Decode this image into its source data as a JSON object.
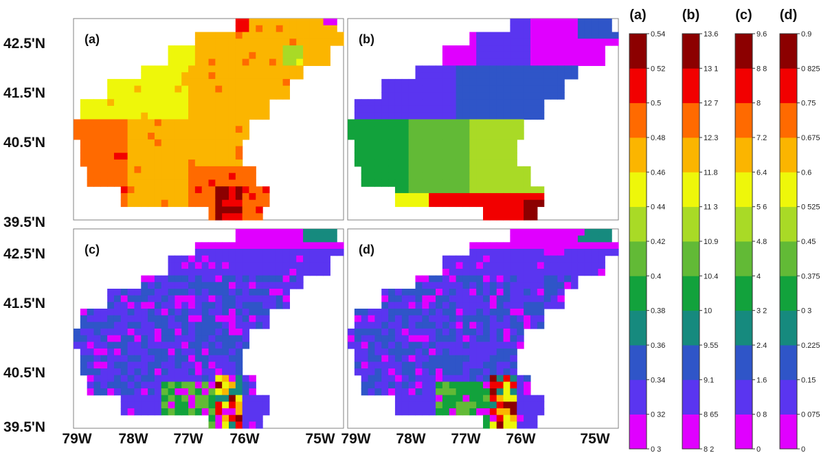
{
  "axes": {
    "lat_labels": [
      "42.5'N",
      "41.5'N",
      "40.5'N",
      "39.5'N"
    ],
    "lon_labels": [
      "79W",
      "78W",
      "77W",
      "76W",
      "75W"
    ]
  },
  "panels": [
    {
      "label": "(a)"
    },
    {
      "label": "(b)"
    },
    {
      "label": "(c)"
    },
    {
      "label": "(d)"
    }
  ],
  "palette": [
    "#e000ff",
    "#5a35f0",
    "#2f55c8",
    "#168a7e",
    "#12a23c",
    "#62ba36",
    "#a9da26",
    "#eef70a",
    "#fbb500",
    "#ff6a00",
    "#f20000",
    "#8c0000"
  ],
  "colorbars": [
    {
      "label": "(a)",
      "ticks": [
        "0 3",
        "0 32",
        "0.34",
        "0.36",
        "0.38",
        "0.4",
        "0.42",
        "0 44",
        "0.46",
        "0.48",
        "0.5",
        "0 52",
        "0.54"
      ]
    },
    {
      "label": "(b)",
      "ticks": [
        "8 2",
        "8 65",
        "9.1",
        "9.55",
        "10",
        "10.4",
        "10.9",
        "11 3",
        "11.8",
        "12.3",
        "12 7",
        "13 1",
        "13.6"
      ]
    },
    {
      "label": "(c)",
      "ticks": [
        "0",
        "0 8",
        "1.6",
        "2.4",
        "3 2",
        "4",
        "4.8",
        "5 6",
        "6.4",
        "7.2",
        "8",
        "8 8",
        "9.6"
      ]
    },
    {
      "label": "(d)",
      "ticks": [
        "0",
        "0 075",
        "0.15",
        "0.225",
        "0 3",
        "0.375",
        "0.45",
        "0 525",
        "0.6",
        "0.675",
        "0.75",
        "0 825",
        "0.9"
      ]
    }
  ]
}
